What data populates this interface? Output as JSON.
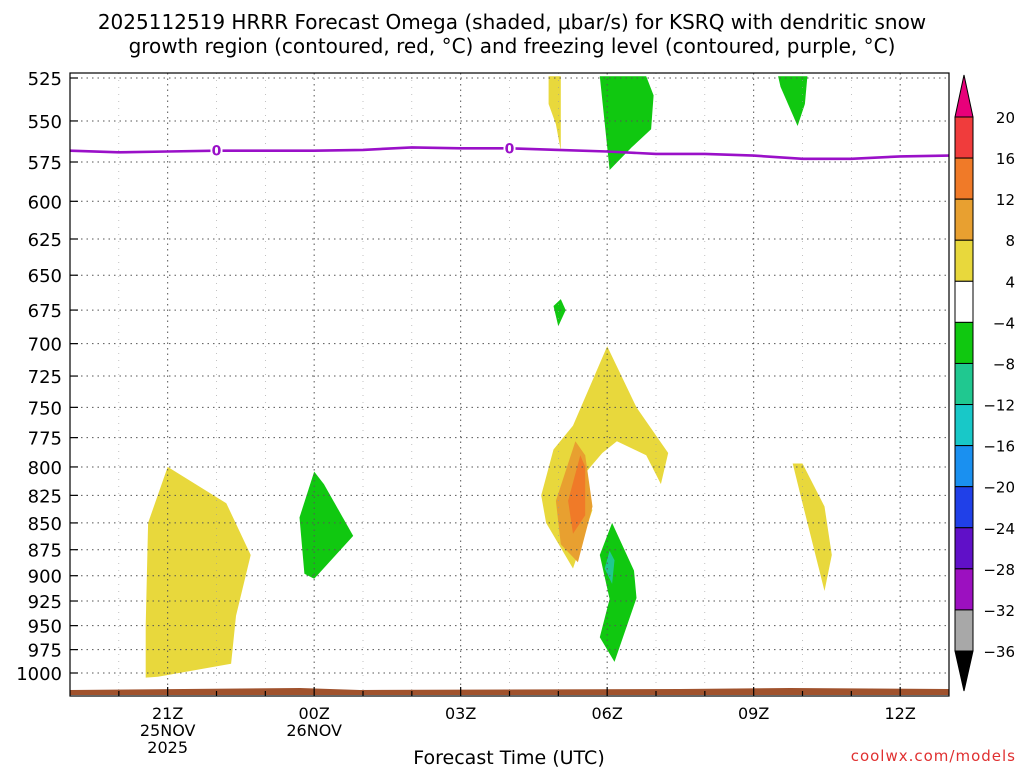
{
  "chart_data": {
    "type": "heatmap",
    "title_line1": "2025112519 HRRR Forecast Omega (shaded, μbar/s) for KSRQ with dendritic snow",
    "title_line2": "growth region (contoured, red, °C) and freezing level (contoured, purple, °C)",
    "xlabel": "Forecast Time (UTC)",
    "x_range_hours": [
      0,
      18
    ],
    "x_ticks": [
      {
        "hour": 2,
        "lines": [
          "21Z",
          "25NOV",
          "2025"
        ]
      },
      {
        "hour": 5,
        "lines": [
          "00Z",
          "26NOV"
        ]
      },
      {
        "hour": 8,
        "lines": [
          "03Z"
        ]
      },
      {
        "hour": 11,
        "lines": [
          "06Z"
        ]
      },
      {
        "hour": 14,
        "lines": [
          "09Z"
        ]
      },
      {
        "hour": 17,
        "lines": [
          "12Z"
        ]
      }
    ],
    "y_range_mb": [
      1025,
      525
    ],
    "y_ticks": [
      525,
      550,
      575,
      600,
      625,
      650,
      675,
      700,
      725,
      750,
      775,
      800,
      825,
      850,
      875,
      900,
      925,
      950,
      975,
      1000
    ],
    "colorbar_levels": [
      "20",
      "16",
      "12",
      "8",
      "4",
      "−4",
      "−8",
      "−12",
      "−16",
      "−20",
      "−24",
      "−28",
      "−32",
      "−36"
    ],
    "colorbar_colors": [
      "#e8007a",
      "#f03c3c",
      "#f07a28",
      "#e8a030",
      "#e8d83c",
      "#ffffff",
      "#10c810",
      "#20c890",
      "#18c8c8",
      "#1a90f0",
      "#2040e8",
      "#6010c8",
      "#9c10c0",
      "#a8a8a8",
      "#000000"
    ],
    "freezing_level": {
      "label": "0",
      "color": "#9a10c8",
      "points": [
        [
          0,
          568
        ],
        [
          1,
          569
        ],
        [
          2,
          568.5
        ],
        [
          3,
          568
        ],
        [
          4,
          568
        ],
        [
          5,
          568
        ],
        [
          6,
          567.5
        ],
        [
          7,
          566
        ],
        [
          8,
          566.5
        ],
        [
          9,
          566.5
        ],
        [
          10,
          567.5
        ],
        [
          11,
          568.5
        ],
        [
          12,
          570
        ],
        [
          13,
          570
        ],
        [
          14,
          571
        ],
        [
          15,
          573
        ],
        [
          16,
          573
        ],
        [
          17,
          571.5
        ],
        [
          18,
          571
        ]
      ],
      "label_hours": [
        3,
        9
      ]
    },
    "omega_regions": [
      {
        "value": "4 to 8",
        "color": "#e8d83c",
        "points": [
          [
            1.55,
            1005
          ],
          [
            1.8,
            1004
          ],
          [
            3.3,
            990
          ],
          [
            3.4,
            940
          ],
          [
            3.7,
            880
          ],
          [
            3.2,
            832
          ],
          [
            2.0,
            800
          ],
          [
            1.6,
            850
          ],
          [
            1.55,
            950
          ]
        ]
      },
      {
        "value": "4 to 8",
        "color": "#e8d83c",
        "points": [
          [
            10.0,
            825
          ],
          [
            10.3,
            818
          ],
          [
            10.9,
            788
          ],
          [
            11.2,
            778
          ],
          [
            11.8,
            790
          ],
          [
            12.1,
            815
          ],
          [
            12.25,
            788
          ],
          [
            11.6,
            750
          ],
          [
            11.0,
            702
          ],
          [
            10.3,
            765
          ],
          [
            9.9,
            785
          ],
          [
            9.65,
            825
          ],
          [
            9.75,
            850
          ],
          [
            10.3,
            893
          ],
          [
            10.7,
            838
          ]
        ]
      },
      {
        "value": "4 to 8",
        "color": "#e8d83c",
        "points": [
          [
            14.8,
            797
          ],
          [
            15.0,
            832
          ],
          [
            15.45,
            915
          ],
          [
            15.6,
            880
          ],
          [
            15.45,
            835
          ],
          [
            15.0,
            797
          ]
        ]
      },
      {
        "value": "4 to 8",
        "color": "#e8d83c",
        "points": [
          [
            9.8,
            524
          ],
          [
            10.05,
            524
          ],
          [
            10.05,
            568
          ],
          [
            9.95,
            552
          ],
          [
            9.8,
            540
          ]
        ]
      },
      {
        "value": "8 to 12",
        "color": "#e8a030",
        "points": [
          [
            10.35,
            778
          ],
          [
            9.95,
            830
          ],
          [
            10.05,
            870
          ],
          [
            10.4,
            887
          ],
          [
            10.7,
            835
          ],
          [
            10.55,
            790
          ]
        ]
      },
      {
        "value": "12 to 16",
        "color": "#f07a28",
        "points": [
          [
            10.45,
            790
          ],
          [
            10.2,
            830
          ],
          [
            10.3,
            860
          ],
          [
            10.55,
            843
          ],
          [
            10.55,
            800
          ]
        ]
      },
      {
        "value": "-4 to -8",
        "color": "#10c810",
        "points": [
          [
            5.0,
            804
          ],
          [
            4.7,
            845
          ],
          [
            4.8,
            898
          ],
          [
            5.0,
            903
          ],
          [
            5.8,
            862
          ],
          [
            5.2,
            815
          ]
        ]
      },
      {
        "value": "-4 to -8",
        "color": "#10c810",
        "points": [
          [
            10.85,
            524
          ],
          [
            11.05,
            580
          ],
          [
            11.5,
            566
          ],
          [
            11.9,
            555
          ],
          [
            11.95,
            535
          ],
          [
            11.8,
            524
          ]
        ]
      },
      {
        "value": "-4 to -8",
        "color": "#10c810",
        "points": [
          [
            11.1,
            850
          ],
          [
            10.85,
            880
          ],
          [
            11.05,
            923
          ],
          [
            10.85,
            962
          ],
          [
            11.15,
            988
          ],
          [
            11.6,
            922
          ],
          [
            11.55,
            895
          ],
          [
            11.1,
            850
          ]
        ]
      },
      {
        "value": "-4 to -8",
        "color": "#10c810",
        "points": [
          [
            14.5,
            524
          ],
          [
            14.55,
            530
          ],
          [
            14.9,
            553
          ],
          [
            15.05,
            540
          ],
          [
            15.1,
            524
          ]
        ]
      },
      {
        "value": "-8 to -12",
        "color": "#20c890",
        "points": [
          [
            11.05,
            876
          ],
          [
            10.95,
            893
          ],
          [
            11.1,
            908
          ],
          [
            11.15,
            885
          ]
        ]
      },
      {
        "value": "-4 to -8",
        "color": "#10c810",
        "points": [
          [
            9.9,
            672
          ],
          [
            10.0,
            687
          ],
          [
            10.15,
            675
          ],
          [
            10.05,
            667
          ]
        ]
      }
    ],
    "terrain_color": "#a0522d"
  },
  "credit": "coolwx.com/models"
}
